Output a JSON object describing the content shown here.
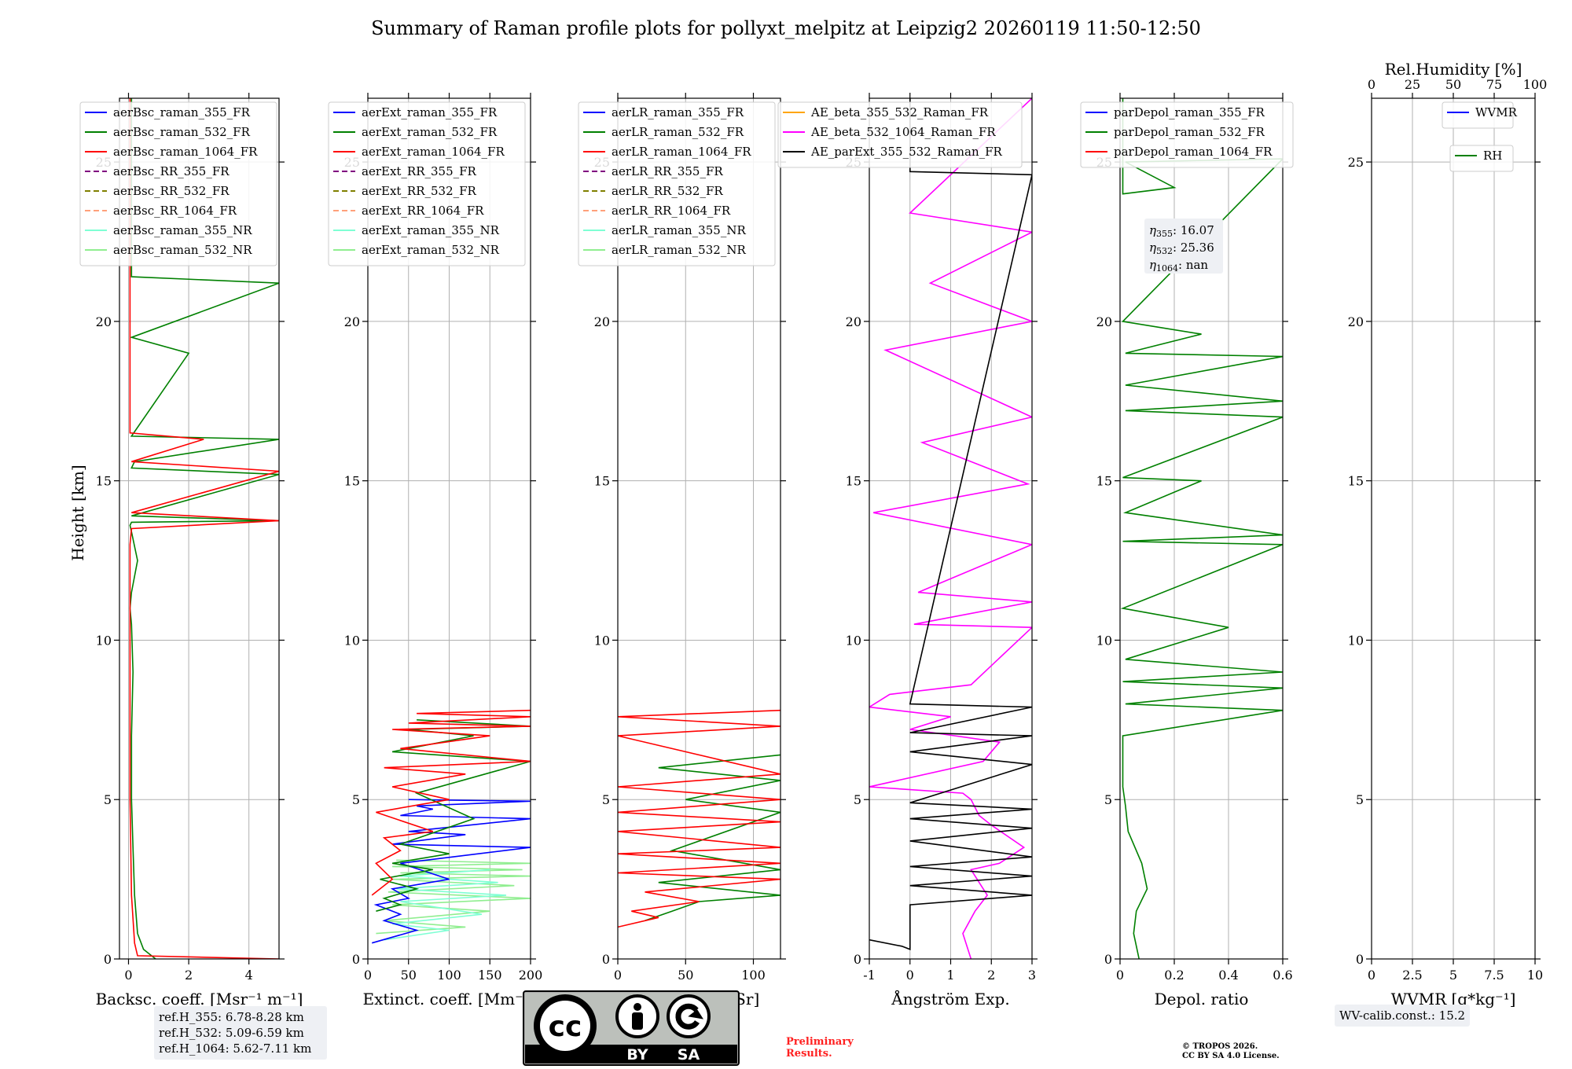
{
  "title": "Summary of Raman profile plots for pollyxt_melpitz at Leipzig2 20260119 11:50-12:50",
  "height_axis": {
    "label": "Height [km]",
    "range": [
      0,
      27
    ],
    "ticks": [
      0,
      5,
      10,
      15,
      20,
      25
    ]
  },
  "colors": {
    "blue": "#0000ff",
    "green": "#008000",
    "red": "#ff0000",
    "purple": "#800080",
    "olive": "#808000",
    "salmon": "#ffa07a",
    "cyan": "#7fffd4",
    "lightgreen": "#90ee90",
    "orange": "#ffa500",
    "magenta": "#ff00ff",
    "black": "#000000"
  },
  "chart_data": [
    {
      "type": "line",
      "id": "backscatter",
      "xlabel": "Backsc. coeff. [Msr$^{-1}$ m$^{-1}$]",
      "xlabel_display": "Backsc. coeff. [Msr⁻¹ m⁻¹]",
      "xlim": [
        -0.3,
        5
      ],
      "xticks": [
        0,
        2,
        4
      ],
      "ylabel": "Height [km]",
      "legend": [
        "aerBsc_raman_355_FR",
        "aerBsc_raman_532_FR",
        "aerBsc_raman_1064_FR",
        "aerBsc_RR_355_FR",
        "aerBsc_RR_532_FR",
        "aerBsc_RR_1064_FR",
        "aerBsc_raman_355_NR",
        "aerBsc_raman_532_NR"
      ],
      "series": [
        {
          "name": "aerBsc_raman_532_FR",
          "color": "#008000",
          "x": [
            0.9,
            0.5,
            0.3,
            0.2,
            0.15,
            0.1,
            0.1,
            0.15,
            0.1,
            0.05,
            0.1,
            0.3,
            0.1,
            0.05,
            0.1,
            5,
            0.1,
            5,
            0.1,
            0.2,
            5,
            0.1,
            2,
            0.1,
            5,
            0.1,
            0.1
          ],
          "y": [
            0.0,
            0.3,
            0.8,
            2.0,
            3.5,
            5.0,
            7.0,
            9.0,
            10.5,
            11.0,
            11.5,
            12.5,
            13.4,
            13.6,
            13.7,
            13.75,
            13.9,
            15.2,
            15.4,
            15.6,
            16.3,
            16.4,
            19.0,
            19.5,
            21.2,
            21.4,
            27.0
          ]
        },
        {
          "name": "aerBsc_raman_1064_FR",
          "color": "#ff0000",
          "x": [
            5,
            0.3,
            0.2,
            0.1,
            0.05,
            0.05,
            0.05,
            0.1,
            5,
            0.1,
            5,
            0.1,
            2.5,
            0.05,
            0.05
          ],
          "y": [
            0.0,
            0.1,
            0.5,
            2.0,
            5.0,
            10.0,
            13.0,
            13.5,
            13.75,
            14.0,
            15.3,
            15.6,
            16.3,
            16.5,
            27.0
          ]
        }
      ]
    },
    {
      "type": "line",
      "id": "extinction",
      "xlabel_display": "Extinct. coeff. [Mm⁻¹]",
      "xlim": [
        0,
        200
      ],
      "xticks": [
        0,
        50,
        100,
        150,
        200
      ],
      "legend": [
        "aerExt_raman_355_FR",
        "aerExt_raman_532_FR",
        "aerExt_raman_1064_FR",
        "aerExt_RR_355_FR",
        "aerExt_RR_532_FR",
        "aerExt_RR_1064_FR",
        "aerExt_raman_355_NR",
        "aerExt_raman_532_NR"
      ],
      "series": [
        {
          "name": "aerExt_raman_532_NR",
          "color": "#90ee90",
          "x": [
            10,
            120,
            20,
            150,
            30,
            200,
            25,
            180,
            30,
            200,
            40,
            190,
            30,
            200,
            35
          ],
          "y": [
            0.8,
            1.0,
            1.2,
            1.5,
            1.7,
            1.9,
            2.1,
            2.3,
            2.5,
            2.6,
            2.7,
            2.8,
            2.9,
            3.0,
            3.1
          ]
        },
        {
          "name": "aerExt_raman_355_NR",
          "color": "#7fffd4",
          "x": [
            20,
            100,
            30,
            140,
            40,
            170,
            35,
            160,
            40,
            150
          ],
          "y": [
            0.6,
            0.9,
            1.1,
            1.4,
            1.8,
            2.0,
            2.2,
            2.4,
            2.6,
            2.8
          ]
        },
        {
          "name": "aerExt_raman_355_FR",
          "color": "#0000ff",
          "x": [
            5,
            60,
            20,
            40,
            10,
            50,
            30,
            100,
            40,
            200,
            30,
            120,
            50,
            200,
            40,
            80,
            60,
            200,
            50
          ],
          "y": [
            0.5,
            0.9,
            1.2,
            1.4,
            1.7,
            1.9,
            2.2,
            2.5,
            3.0,
            3.5,
            3.6,
            3.9,
            4.0,
            4.4,
            4.5,
            4.7,
            4.8,
            4.95,
            5.0
          ]
        },
        {
          "name": "aerExt_raman_532_FR",
          "color": "#008000",
          "x": [
            10,
            40,
            20,
            60,
            15,
            80,
            30,
            100,
            40,
            130,
            60,
            200,
            30,
            130,
            50,
            200,
            60
          ],
          "y": [
            1.5,
            1.7,
            1.9,
            2.2,
            2.5,
            2.8,
            3.0,
            3.3,
            3.6,
            4.4,
            5.2,
            6.2,
            6.5,
            7.0,
            7.2,
            7.3,
            7.5
          ]
        },
        {
          "name": "aerExt_raman_1064_FR",
          "color": "#ff0000",
          "x": [
            5,
            30,
            10,
            40,
            20,
            80,
            10,
            100,
            30,
            120,
            20,
            200,
            40,
            150,
            30,
            200,
            50,
            200,
            60,
            200
          ],
          "y": [
            2.0,
            2.5,
            3.0,
            3.4,
            3.8,
            4.0,
            4.6,
            5.0,
            5.4,
            5.8,
            6.0,
            6.2,
            6.6,
            7.0,
            7.2,
            7.3,
            7.4,
            7.6,
            7.7,
            7.8
          ]
        }
      ]
    },
    {
      "type": "line",
      "id": "lidar_ratio",
      "xlabel_display": "Lidar ratio [Sr]",
      "xlim": [
        0,
        120
      ],
      "xticks": [
        0,
        50,
        100
      ],
      "legend": [
        "aerLR_raman_355_FR",
        "aerLR_raman_532_FR",
        "aerLR_raman_1064_FR",
        "aerLR_RR_355_FR",
        "aerLR_RR_532_FR",
        "aerLR_RR_1064_FR",
        "aerLR_raman_355_NR",
        "aerLR_raman_532_NR"
      ],
      "series": [
        {
          "name": "aerLR_raman_532_FR",
          "color": "#008000",
          "x": [
            20,
            40,
            60,
            120,
            30,
            120,
            40,
            120,
            50,
            120,
            30,
            120
          ],
          "y": [
            1.2,
            1.5,
            1.8,
            2.0,
            2.4,
            2.8,
            3.4,
            4.6,
            5.0,
            5.6,
            6.0,
            6.4
          ]
        },
        {
          "name": "aerLR_raman_1064_FR",
          "color": "#ff0000",
          "x": [
            0,
            30,
            10,
            60,
            20,
            120,
            0,
            120,
            0,
            120,
            0,
            120,
            0,
            120,
            0,
            120,
            0,
            120,
            0,
            120
          ],
          "y": [
            1.0,
            1.3,
            1.5,
            1.8,
            2.1,
            2.5,
            2.7,
            3.0,
            3.3,
            3.5,
            4.0,
            4.3,
            4.6,
            5.0,
            5.4,
            5.8,
            7.0,
            7.3,
            7.6,
            7.8
          ]
        }
      ]
    },
    {
      "type": "line",
      "id": "angstrom",
      "xlabel_display": "Ångström Exp.",
      "xlim": [
        -1,
        3
      ],
      "xticks": [
        -1,
        0,
        1,
        2,
        3
      ],
      "legend": [
        "AE_beta_355_532_Raman_FR",
        "AE_beta_532_1064_Raman_FR",
        "AE_parExt_355_532_Raman_FR"
      ],
      "series": [
        {
          "name": "AE_beta_532_1064_Raman_FR",
          "color": "#ff00ff",
          "x": [
            1.5,
            1.3,
            1.6,
            1.9,
            1.5,
            2.2,
            2.8,
            2.0,
            1.7,
            1.5,
            1.3,
            -1,
            1.8,
            2.2,
            0,
            1.0,
            -1,
            -0.5,
            1.5,
            3,
            0.1,
            3,
            0.2,
            3,
            -0.9,
            2.9,
            0.3,
            3,
            -0.6,
            3,
            0.5,
            3,
            0,
            3
          ],
          "y": [
            0.0,
            0.8,
            1.5,
            2.0,
            2.8,
            3.0,
            3.5,
            4.2,
            4.5,
            5.0,
            5.2,
            5.4,
            6.2,
            6.8,
            7.2,
            7.6,
            7.9,
            8.3,
            8.6,
            10.4,
            10.5,
            11.2,
            11.5,
            13.0,
            14.0,
            14.9,
            16.2,
            17.0,
            19.1,
            20.0,
            21.2,
            22.8,
            23.4,
            27.0
          ]
        },
        {
          "name": "AE_parExt_355_532_Raman_FR",
          "color": "#000000",
          "x": [
            -1,
            -0.2,
            0,
            0,
            3,
            0,
            3,
            0,
            3,
            0,
            3,
            0,
            3,
            0,
            3,
            0,
            3,
            0,
            3,
            0,
            3,
            0,
            0
          ],
          "y": [
            0.6,
            0.4,
            0.3,
            1.7,
            2.0,
            2.3,
            2.6,
            2.9,
            3.2,
            3.7,
            4.1,
            4.4,
            4.7,
            4.9,
            6.1,
            6.5,
            7.0,
            7.1,
            7.9,
            8.0,
            24.6,
            24.7,
            27.0
          ]
        }
      ]
    },
    {
      "type": "line",
      "id": "depol",
      "xlabel_display": "Depol. ratio",
      "xlim": [
        0,
        0.6
      ],
      "xticks": [
        0.0,
        0.2,
        0.4,
        0.6
      ],
      "legend": [
        "parDepol_raman_355_FR",
        "parDepol_raman_532_FR",
        "parDepol_raman_1064_FR"
      ],
      "annotation": [
        "η355: 16.07",
        "η532: 25.36",
        "η1064: nan"
      ],
      "series": [
        {
          "name": "parDepol_raman_532_FR",
          "color": "#008000",
          "x": [
            0.07,
            0.05,
            0.06,
            0.1,
            0.08,
            0.03,
            0.02,
            0.01,
            0.01,
            0.6,
            0.02,
            0.6,
            0.01,
            0.6,
            0.02,
            0.4,
            0.01,
            0.6,
            0.01,
            0.6,
            0.02,
            0.3,
            0.01,
            0.6,
            0.02,
            0.6,
            0.02,
            0.6,
            0.02,
            0.3,
            0.01,
            0.6,
            0.02,
            0.2,
            0.01,
            0.01
          ],
          "y": [
            0.0,
            0.8,
            1.5,
            2.2,
            3.0,
            4.0,
            4.8,
            5.4,
            7.0,
            7.8,
            8.0,
            8.5,
            8.7,
            9.0,
            9.4,
            10.4,
            11.0,
            13.0,
            13.1,
            13.3,
            14.0,
            15.0,
            15.1,
            17.0,
            17.2,
            17.5,
            18.0,
            18.9,
            19.0,
            19.6,
            20.0,
            25.1,
            25.0,
            24.2,
            24.0,
            27.0
          ]
        }
      ]
    },
    {
      "type": "line",
      "id": "wvmr",
      "xlabel_display": "WVMR [g*kg⁻¹]",
      "xlim": [
        0,
        10
      ],
      "xticks": [
        0.0,
        2.5,
        5.0,
        7.5,
        10.0
      ],
      "top_xlabel": "Rel.Humidity [%]",
      "top_xlim": [
        0,
        100
      ],
      "top_xticks": [
        0,
        25,
        50,
        75,
        100
      ],
      "legend": [
        "WVMR"
      ],
      "legend2": [
        "RH"
      ],
      "series": []
    }
  ],
  "footer": {
    "ref_heights": [
      "ref.H_355: 6.78-8.28 km",
      "ref.H_532: 5.09-6.59 km",
      "ref.H_1064: 5.62-7.11 km"
    ],
    "wv_calib": "WV-calib.const.: 15.2",
    "preliminary": [
      "Preliminary",
      "Results."
    ],
    "copyright": [
      "© TROPOS 2026.",
      "CC BY SA 4.0 License."
    ],
    "cc_badge": {
      "main": "cc",
      "by": "BY",
      "sa": "SA"
    }
  }
}
